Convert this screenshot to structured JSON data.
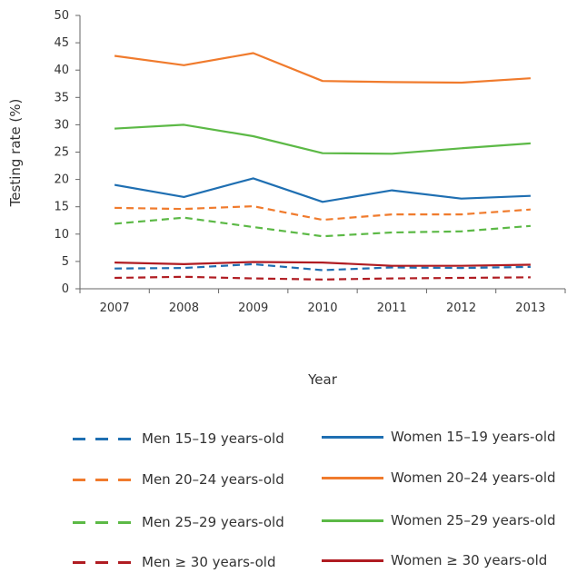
{
  "chart_data": {
    "type": "line",
    "xlabel": "Year",
    "ylabel": "Testing rate (%)",
    "ylim": [
      0,
      50
    ],
    "yticks": [
      0,
      5,
      10,
      15,
      20,
      25,
      30,
      35,
      40,
      45,
      50
    ],
    "categories": [
      "2007",
      "2008",
      "2009",
      "2010",
      "2011",
      "2012",
      "2013"
    ],
    "grid": false,
    "legend_position": "bottom",
    "series": [
      {
        "name": "Men 15–19 years-old",
        "color": "#1f6fb2",
        "dash": "dashed",
        "values": [
          3.7,
          3.8,
          4.5,
          3.4,
          3.9,
          3.8,
          4.0
        ]
      },
      {
        "name": "Women 15–19 years-old",
        "color": "#1f6fb2",
        "dash": "solid",
        "values": [
          19.0,
          16.8,
          20.2,
          15.9,
          18.0,
          16.5,
          17.0
        ]
      },
      {
        "name": "Men 20–24 years-old",
        "color": "#f07b2d",
        "dash": "dashed",
        "values": [
          14.8,
          14.6,
          15.1,
          12.6,
          13.6,
          13.6,
          14.5
        ]
      },
      {
        "name": "Women 20–24 years-old",
        "color": "#f07b2d",
        "dash": "solid",
        "values": [
          42.6,
          40.9,
          43.1,
          38.0,
          37.8,
          37.7,
          38.5
        ]
      },
      {
        "name": "Men 25–29 years-old",
        "color": "#5cb946",
        "dash": "dashed",
        "values": [
          11.9,
          13.0,
          11.3,
          9.6,
          10.3,
          10.5,
          11.5
        ]
      },
      {
        "name": "Women 25–29 years-old",
        "color": "#5cb946",
        "dash": "solid",
        "values": [
          29.3,
          30.0,
          27.9,
          24.8,
          24.7,
          25.7,
          26.6
        ]
      },
      {
        "name": "Men ≥ 30 years-old",
        "color": "#b01c22",
        "dash": "dashed",
        "values": [
          2.0,
          2.2,
          1.9,
          1.7,
          1.9,
          2.0,
          2.1
        ]
      },
      {
        "name": "Women ≥ 30 years-old",
        "color": "#b01c22",
        "dash": "solid",
        "values": [
          4.8,
          4.5,
          4.9,
          4.8,
          4.2,
          4.2,
          4.4
        ]
      }
    ]
  }
}
